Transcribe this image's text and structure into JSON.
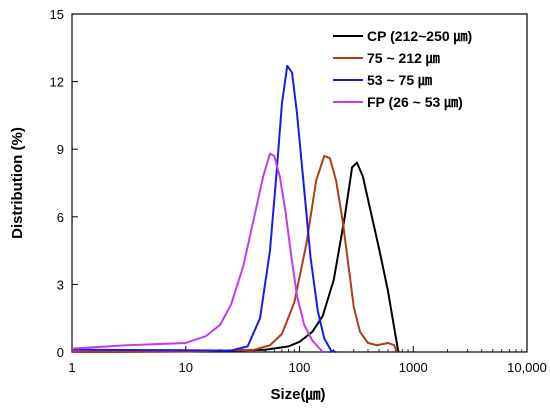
{
  "chart_data": {
    "type": "line",
    "title": "",
    "xlabel": "Size(㎛)",
    "ylabel": "Distribution (%)",
    "x_scale": "log",
    "xlim": [
      1,
      10000
    ],
    "ylim": [
      0,
      15
    ],
    "x_ticks": [
      1,
      10,
      100,
      1000,
      10000
    ],
    "x_tick_labels": [
      "1",
      "10",
      "100",
      "1000",
      "10,000"
    ],
    "y_ticks": [
      0,
      3,
      6,
      9,
      12,
      15
    ],
    "y_tick_labels": [
      "0",
      "3",
      "6",
      "9",
      "12",
      "15"
    ],
    "grid": false,
    "legend_position": "top-right",
    "series": [
      {
        "name": "CP (212~250 ㎛)",
        "color": "#000000",
        "points": [
          [
            1,
            0
          ],
          [
            10,
            0.02
          ],
          [
            50,
            0.1
          ],
          [
            80,
            0.25
          ],
          [
            100,
            0.45
          ],
          [
            130,
            0.9
          ],
          [
            160,
            1.6
          ],
          [
            200,
            3.2
          ],
          [
            250,
            6.0
          ],
          [
            290,
            8.2
          ],
          [
            320,
            8.4
          ],
          [
            360,
            7.8
          ],
          [
            420,
            6.3
          ],
          [
            500,
            4.6
          ],
          [
            600,
            2.7
          ],
          [
            700,
            0.7
          ],
          [
            740,
            0
          ]
        ]
      },
      {
        "name": "75 ~ 212 ㎛",
        "color": "#b33a1a",
        "points": [
          [
            1,
            0
          ],
          [
            10,
            0.02
          ],
          [
            40,
            0.1
          ],
          [
            55,
            0.3
          ],
          [
            70,
            0.8
          ],
          [
            90,
            2.2
          ],
          [
            115,
            4.8
          ],
          [
            140,
            7.6
          ],
          [
            165,
            8.7
          ],
          [
            185,
            8.6
          ],
          [
            210,
            7.6
          ],
          [
            240,
            5.8
          ],
          [
            270,
            3.8
          ],
          [
            300,
            2.0
          ],
          [
            340,
            0.9
          ],
          [
            400,
            0.4
          ],
          [
            480,
            0.3
          ],
          [
            600,
            0.4
          ],
          [
            680,
            0.3
          ],
          [
            720,
            0
          ]
        ]
      },
      {
        "name": "53 ~ 75 ㎛",
        "color": "#1a1aeb",
        "points": [
          [
            1,
            0.1
          ],
          [
            10,
            0.08
          ],
          [
            25,
            0.06
          ],
          [
            35,
            0.25
          ],
          [
            45,
            1.5
          ],
          [
            55,
            4.5
          ],
          [
            63,
            8.0
          ],
          [
            70,
            11.0
          ],
          [
            78,
            12.7
          ],
          [
            86,
            12.4
          ],
          [
            95,
            10.6
          ],
          [
            110,
            7.2
          ],
          [
            125,
            4.2
          ],
          [
            145,
            1.8
          ],
          [
            165,
            0.6
          ],
          [
            190,
            0.05
          ],
          [
            210,
            0
          ]
        ]
      },
      {
        "name": "FP (26 ~ 53 ㎛)",
        "color": "#c03cf0",
        "points": [
          [
            1,
            0.15
          ],
          [
            3,
            0.3
          ],
          [
            10,
            0.4
          ],
          [
            15,
            0.7
          ],
          [
            20,
            1.2
          ],
          [
            25,
            2.1
          ],
          [
            32,
            3.8
          ],
          [
            40,
            6.0
          ],
          [
            48,
            7.8
          ],
          [
            55,
            8.8
          ],
          [
            60,
            8.7
          ],
          [
            67,
            7.8
          ],
          [
            75,
            6.3
          ],
          [
            85,
            4.2
          ],
          [
            95,
            2.5
          ],
          [
            110,
            1.2
          ],
          [
            130,
            0.5
          ],
          [
            160,
            0
          ]
        ]
      }
    ]
  }
}
